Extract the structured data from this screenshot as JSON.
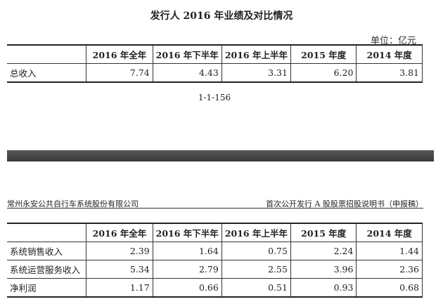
{
  "page1": {
    "title": "发行人 2016 年业绩及对比情况",
    "unit": "单位：亿元",
    "columns": [
      "",
      "2016 年全年",
      "2016 年下半年",
      "2016 年上半年",
      "2015 年度",
      "2014 年度"
    ],
    "rows": [
      {
        "label": "总收入",
        "values": [
          "7.74",
          "4.43",
          "3.31",
          "6.20",
          "3.81"
        ]
      }
    ],
    "page_number": "1-1-156"
  },
  "page2": {
    "header_left": "常州永安公共自行车系统股份有限公司",
    "header_right": "首次公开发行 A 股股票招股说明书（申报稿）",
    "columns": [
      "",
      "2016 年全年",
      "2016 年下半年",
      "2016 年上半年",
      "2015 年度",
      "2014 年度"
    ],
    "rows": [
      {
        "label": "系统销售收入",
        "values": [
          "2.39",
          "1.64",
          "0.75",
          "2.24",
          "1.44"
        ]
      },
      {
        "label": "系统运营服务收入",
        "values": [
          "5.34",
          "2.79",
          "2.55",
          "3.96",
          "2.36"
        ]
      },
      {
        "label": "净利润",
        "values": [
          "1.17",
          "0.66",
          "0.51",
          "0.93",
          "0.68"
        ]
      }
    ]
  }
}
